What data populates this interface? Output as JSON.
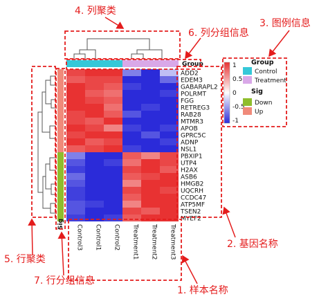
{
  "chart_data": {
    "type": "heatmap",
    "columns": [
      "Control3",
      "Control1",
      "Control2",
      "Treatment1",
      "Treatment2",
      "Treatment3"
    ],
    "rows": [
      "ADD2",
      "EDEM3",
      "GABARAPL2",
      "POLRMT",
      "FGG",
      "RETREG3",
      "RAB28",
      "MTMR3",
      "APOB",
      "GPRC5C",
      "ADNP",
      "NSL1",
      "PBXIP1",
      "UTP4",
      "H2AX",
      "ASB6",
      "HMGB2",
      "UQCRH",
      "CCDC47",
      "ATP5MF",
      "TSEN2",
      "MYEF2"
    ],
    "values": [
      [
        0.9,
        1.0,
        1.1,
        -0.6,
        -1.0,
        -0.3
      ],
      [
        0.8,
        0.9,
        0.9,
        -1.0,
        -1.1,
        -0.7
      ],
      [
        1.0,
        0.9,
        0.8,
        -0.9,
        -1.0,
        -1.1
      ],
      [
        1.0,
        0.8,
        0.7,
        -1.1,
        -1.0,
        -0.9
      ],
      [
        1.1,
        0.9,
        0.8,
        -1.0,
        -1.0,
        -1.1
      ],
      [
        1.0,
        1.0,
        0.7,
        -1.0,
        -0.9,
        -1.1
      ],
      [
        0.9,
        1.1,
        0.8,
        -0.8,
        -1.1,
        -1.0
      ],
      [
        0.9,
        0.8,
        1.0,
        -1.0,
        -1.0,
        -1.0
      ],
      [
        1.1,
        0.9,
        0.6,
        -0.9,
        -1.1,
        -0.9
      ],
      [
        0.9,
        1.0,
        1.0,
        -1.0,
        -0.8,
        -1.0
      ],
      [
        1.0,
        0.8,
        0.9,
        -1.1,
        -1.0,
        -0.9
      ],
      [
        0.8,
        0.9,
        1.0,
        -0.9,
        -1.0,
        -1.0
      ],
      [
        -0.6,
        -1.0,
        -1.0,
        0.8,
        0.6,
        0.9
      ],
      [
        -0.8,
        -1.1,
        -0.9,
        0.7,
        1.2,
        0.9
      ],
      [
        -0.9,
        -1.1,
        -1.0,
        0.9,
        1.0,
        0.8
      ],
      [
        -0.7,
        -1.0,
        -1.1,
        0.8,
        0.9,
        1.0
      ],
      [
        -0.8,
        -1.0,
        -1.1,
        0.6,
        1.0,
        1.0
      ],
      [
        -0.9,
        -1.1,
        -1.0,
        0.9,
        1.1,
        0.9
      ],
      [
        -0.9,
        -1.0,
        -1.0,
        0.8,
        1.0,
        1.1
      ],
      [
        -0.8,
        -0.9,
        -1.1,
        0.6,
        1.0,
        1.0
      ],
      [
        -0.8,
        -1.0,
        -1.1,
        0.9,
        0.8,
        1.1
      ],
      [
        -0.9,
        -1.0,
        -0.9,
        0.8,
        1.0,
        1.0
      ]
    ],
    "color_scale": {
      "min": -1,
      "max": 1,
      "low": "#2b2bd9",
      "mid": "#ffffff",
      "high": "#e83232",
      "ticks": [
        "1",
        "0.5",
        "0",
        "-0.5",
        "-1"
      ]
    },
    "column_group": {
      "label": "Group",
      "values": [
        "Control",
        "Control",
        "Control",
        "Treatment",
        "Treatment",
        "Treatment"
      ]
    },
    "row_group": {
      "label": "Sig",
      "values": [
        "Up",
        "Up",
        "Up",
        "Up",
        "Up",
        "Up",
        "Up",
        "Up",
        "Up",
        "Up",
        "Up",
        "Up",
        "Down",
        "Down",
        "Down",
        "Down",
        "Down",
        "Down",
        "Down",
        "Down",
        "Down",
        "Down"
      ]
    },
    "legend": {
      "group_title": "Group",
      "group_items": [
        {
          "label": "Control",
          "color": "#35c8d8"
        },
        {
          "label": "Treatment",
          "color": "#d9a8e8"
        }
      ],
      "sig_title": "Sig",
      "sig_items": [
        {
          "label": "Down",
          "color": "#8fbd2c"
        },
        {
          "label": "Up",
          "color": "#f08a7a"
        }
      ]
    },
    "group_colors": {
      "Control": "#35c8d8",
      "Treatment": "#d9a8e8"
    },
    "sig_colors": {
      "Down": "#8fbd2c",
      "Up": "#f08a7a"
    }
  },
  "annotations": {
    "column_cluster": "4. 列聚类",
    "legend_info": "3. 图例信息",
    "column_group_info": "6. 列分组信息",
    "gene_names": "2. 基因名称",
    "row_cluster": "5. 行聚类",
    "row_group_info": "7. 行分组信息",
    "sample_names": "1. 样本名称"
  },
  "colors": {
    "annotation": "#e41c1c"
  }
}
